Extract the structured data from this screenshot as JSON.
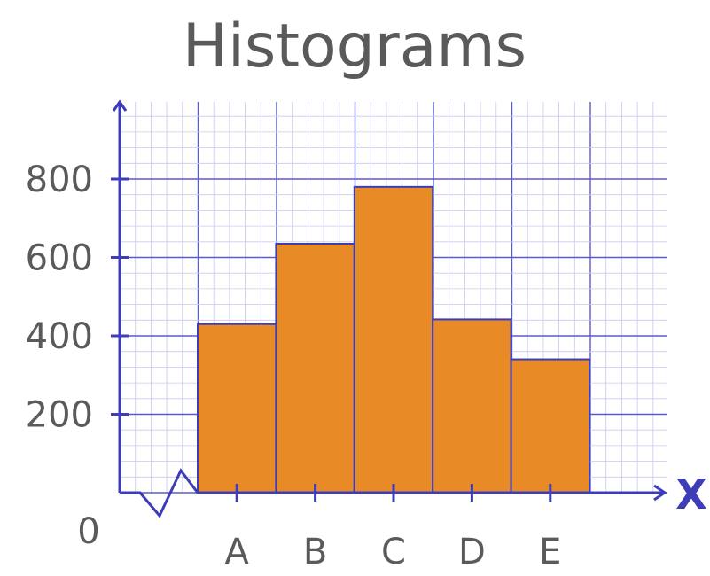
{
  "chart_data": {
    "type": "bar",
    "title": "Histograms",
    "xlabel": "X",
    "ylabel": "",
    "categories": [
      "A",
      "B",
      "C",
      "D",
      "E"
    ],
    "values": [
      430,
      635,
      780,
      442,
      340
    ],
    "ylim": [
      0,
      1000
    ],
    "yticks": [
      "200",
      "400",
      "600",
      "800"
    ],
    "origin_label": "0",
    "axis_break": true,
    "grid": true,
    "colors": {
      "bar_fill": "#E88A26",
      "bar_stroke": "#3D3DB8",
      "axis": "#3D3DB8",
      "grid_major": "#5A5ACF",
      "grid_minor": "#C9C9EE",
      "text": "#5A5A5A"
    }
  }
}
